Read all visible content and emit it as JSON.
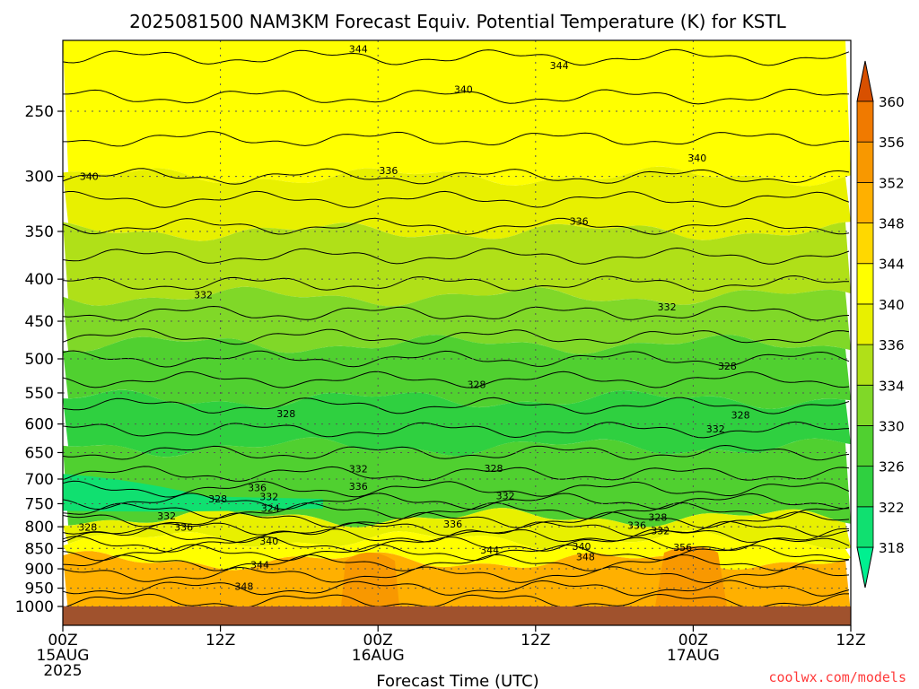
{
  "chart_data": {
    "type": "heatmap",
    "title": "2025081500 NAM3KM Forecast Equiv. Potential Temperature (K) for KSTL",
    "xlabel": "Forecast Time (UTC)",
    "ylabel": "",
    "x_tick_labels": [
      {
        "hour": 0,
        "lines": [
          "00Z",
          "15AUG",
          "2025"
        ]
      },
      {
        "hour": 12,
        "lines": [
          "12Z"
        ]
      },
      {
        "hour": 24,
        "lines": [
          "00Z",
          "16AUG"
        ]
      },
      {
        "hour": 36,
        "lines": [
          "12Z"
        ]
      },
      {
        "hour": 48,
        "lines": [
          "00Z",
          "17AUG"
        ]
      },
      {
        "hour": 60,
        "lines": [
          "12Z"
        ]
      }
    ],
    "xlim": [
      0,
      60
    ],
    "y_ticks": [
      250,
      300,
      350,
      400,
      450,
      500,
      550,
      600,
      650,
      700,
      750,
      800,
      850,
      900,
      950,
      1000
    ],
    "y_tick_labels": [
      "250",
      "300",
      "350",
      "400",
      "450",
      "500",
      "550",
      "600",
      "650",
      "700",
      "750",
      "800",
      "850",
      "900",
      "950",
      "1000"
    ],
    "ylim": [
      200,
      1020
    ],
    "y_scale": "log",
    "y_inverted": true,
    "grid": true,
    "colorbar": {
      "levels": [
        318,
        322,
        326,
        330,
        334,
        336,
        340,
        344,
        348,
        352,
        356,
        360
      ],
      "labels": [
        "318",
        "322",
        "326",
        "330",
        "334",
        "336",
        "340",
        "344",
        "348",
        "352",
        "356",
        "360"
      ],
      "colors": [
        "#00f090",
        "#10e070",
        "#2fd040",
        "#50d030",
        "#80d828",
        "#b0e018",
        "#e8f000",
        "#ffff00",
        "#ffd800",
        "#ffb000",
        "#f89800",
        "#f07a00",
        "#d85000"
      ],
      "extend": "both"
    },
    "ground_color": "#a0522d",
    "contour_labels": [
      {
        "v": "344",
        "hour": 22.5,
        "p": 210
      },
      {
        "v": "344",
        "hour": 37.8,
        "p": 220
      },
      {
        "v": "340",
        "hour": 30.5,
        "p": 235
      },
      {
        "v": "340",
        "hour": 2.0,
        "p": 300
      },
      {
        "v": "336",
        "hour": 24.8,
        "p": 295
      },
      {
        "v": "340",
        "hour": 48.3,
        "p": 285
      },
      {
        "v": "336",
        "hour": 39.3,
        "p": 340
      },
      {
        "v": "332",
        "hour": 10.7,
        "p": 418
      },
      {
        "v": "332",
        "hour": 46.0,
        "p": 432
      },
      {
        "v": "328",
        "hour": 50.6,
        "p": 510
      },
      {
        "v": "328",
        "hour": 31.5,
        "p": 537
      },
      {
        "v": "328",
        "hour": 17.0,
        "p": 583
      },
      {
        "v": "328",
        "hour": 51.6,
        "p": 585
      },
      {
        "v": "332",
        "hour": 49.7,
        "p": 608
      },
      {
        "v": "328",
        "hour": 32.8,
        "p": 679
      },
      {
        "v": "332",
        "hour": 22.5,
        "p": 680
      },
      {
        "v": "336",
        "hour": 22.5,
        "p": 714
      },
      {
        "v": "336",
        "hour": 14.8,
        "p": 717
      },
      {
        "v": "332",
        "hour": 15.7,
        "p": 735
      },
      {
        "v": "328",
        "hour": 11.8,
        "p": 740
      },
      {
        "v": "324",
        "hour": 15.8,
        "p": 760
      },
      {
        "v": "332",
        "hour": 33.7,
        "p": 733
      },
      {
        "v": "332",
        "hour": 7.9,
        "p": 776
      },
      {
        "v": "336",
        "hour": 9.2,
        "p": 801
      },
      {
        "v": "328",
        "hour": 1.9,
        "p": 801
      },
      {
        "v": "328",
        "hour": 45.3,
        "p": 779
      },
      {
        "v": "336",
        "hour": 29.7,
        "p": 794
      },
      {
        "v": "336",
        "hour": 43.7,
        "p": 797
      },
      {
        "v": "332",
        "hour": 45.5,
        "p": 809
      },
      {
        "v": "340",
        "hour": 15.7,
        "p": 832
      },
      {
        "v": "340",
        "hour": 39.5,
        "p": 845
      },
      {
        "v": "356",
        "hour": 47.2,
        "p": 847
      },
      {
        "v": "344",
        "hour": 32.5,
        "p": 854
      },
      {
        "v": "348",
        "hour": 39.8,
        "p": 870
      },
      {
        "v": "344",
        "hour": 15.0,
        "p": 890
      },
      {
        "v": "348",
        "hour": 13.8,
        "p": 945
      }
    ]
  },
  "credit": "coolwx.com/models"
}
